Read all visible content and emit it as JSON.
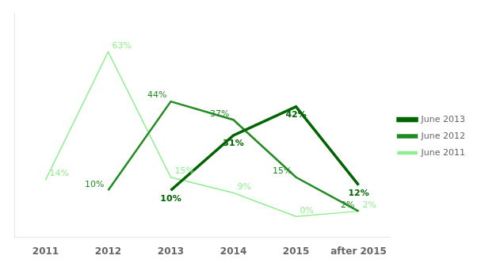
{
  "chart_data": {
    "type": "line",
    "categories": [
      "2011",
      "2012",
      "2013",
      "2014",
      "2015",
      "after 2015"
    ],
    "series": [
      {
        "name": "June 2011",
        "color": "#90EE90",
        "values": [
          14,
          63,
          15,
          9,
          0,
          2
        ],
        "value_labels": [
          "14%",
          "63%",
          "15%",
          "9%",
          "0%",
          "2%"
        ]
      },
      {
        "name": "June 2012",
        "color": "#228B22",
        "values": [
          null,
          10,
          44,
          37,
          15,
          2
        ],
        "value_labels": [
          null,
          "10%",
          "44%",
          "37%",
          "15%",
          "2%"
        ]
      },
      {
        "name": "June 2013",
        "color": "#006400",
        "values": [
          null,
          null,
          10,
          31,
          42,
          12
        ],
        "value_labels": [
          null,
          null,
          "10%",
          "31%",
          "42%",
          "12%"
        ]
      }
    ],
    "ylim": [
      -8,
      78
    ],
    "grid": false,
    "legend": "right",
    "data_labels": true,
    "tick_labels": "x"
  }
}
